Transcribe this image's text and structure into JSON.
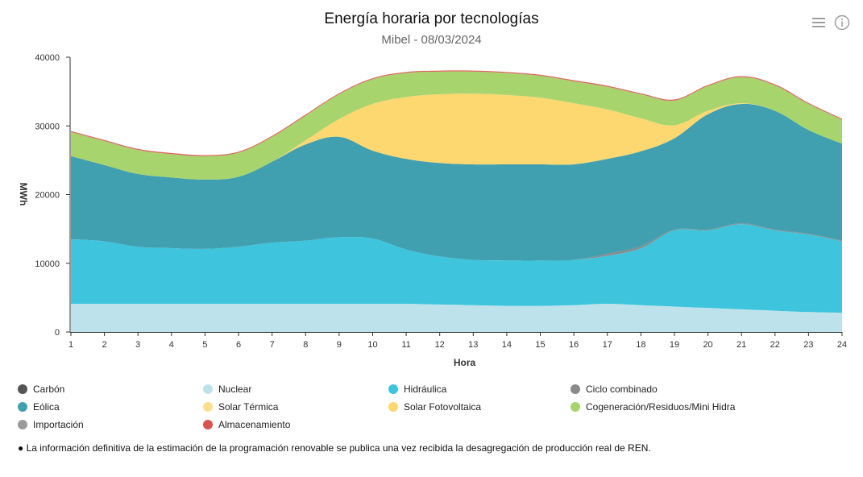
{
  "header": {
    "title": "Energía horaria por tecnologías",
    "subtitle": "Mibel - 08/03/2024"
  },
  "toolbar": {
    "menu_icon": "hamburger-menu-icon",
    "info_icon": "info-circle-icon"
  },
  "note": "● La información definitiva de la estimación de la programación renovable se publica una vez recibida la desagregación de producción real de REN.",
  "chart_data": {
    "type": "area",
    "stacked": true,
    "xlabel": "Hora",
    "ylabel": "MWh",
    "ylim": [
      0,
      40000
    ],
    "yticks": [
      0,
      10000,
      20000,
      30000,
      40000
    ],
    "y_tick_labels": [
      "0",
      "10000",
      "20000",
      "30000",
      "40000"
    ],
    "grid": false,
    "legend_position": "bottom",
    "x": [
      1,
      2,
      3,
      4,
      5,
      6,
      7,
      8,
      9,
      10,
      11,
      12,
      13,
      14,
      15,
      16,
      17,
      18,
      19,
      20,
      21,
      22,
      23,
      24
    ],
    "x_tick_labels": [
      "1",
      "2",
      "3",
      "4",
      "5",
      "6",
      "7",
      "8",
      "9",
      "10",
      "11",
      "12",
      "13",
      "14",
      "15",
      "16",
      "17",
      "18",
      "19",
      "20",
      "21",
      "22",
      "23",
      "24"
    ],
    "series": [
      {
        "name": "Carbón",
        "color": "#555555",
        "values": [
          0,
          0,
          0,
          0,
          0,
          0,
          0,
          0,
          0,
          0,
          0,
          0,
          0,
          0,
          0,
          0,
          0,
          0,
          0,
          0,
          0,
          0,
          0,
          0
        ]
      },
      {
        "name": "Nuclear",
        "color": "#bde2ec",
        "values": [
          4100,
          4100,
          4100,
          4100,
          4100,
          4100,
          4100,
          4100,
          4100,
          4100,
          4100,
          4000,
          3900,
          3800,
          3800,
          3900,
          4100,
          3900,
          3700,
          3500,
          3300,
          3100,
          2900,
          2800
        ]
      },
      {
        "name": "Hidráulica",
        "color": "#3ec4dd",
        "values": [
          9400,
          9100,
          8300,
          8100,
          8000,
          8300,
          8900,
          9200,
          9700,
          9500,
          7900,
          7000,
          6600,
          6600,
          6600,
          6600,
          7000,
          8300,
          11100,
          11300,
          12400,
          11700,
          11300,
          10400
        ]
      },
      {
        "name": "Ciclo combinado",
        "color": "#8a8a8a",
        "values": [
          0,
          0,
          0,
          0,
          0,
          0,
          0,
          0,
          0,
          0,
          0,
          0,
          0,
          0,
          0,
          0,
          300,
          300,
          100,
          100,
          100,
          100,
          100,
          100
        ]
      },
      {
        "name": "Eólica",
        "color": "#41a0b0",
        "values": [
          12100,
          11100,
          10600,
          10300,
          10100,
          10200,
          11800,
          14000,
          14600,
          12800,
          13200,
          13600,
          13900,
          14000,
          14000,
          13900,
          13800,
          13800,
          13300,
          16800,
          17400,
          17300,
          15100,
          14100
        ]
      },
      {
        "name": "Solar Térmica",
        "color": "#fddd8e",
        "values": [
          0,
          0,
          0,
          0,
          0,
          0,
          0,
          0,
          0,
          0,
          0,
          0,
          0,
          0,
          0,
          0,
          0,
          0,
          0,
          0,
          0,
          0,
          0,
          0
        ]
      },
      {
        "name": "Solar Fotovoltaica",
        "color": "#fdd770",
        "values": [
          0,
          0,
          0,
          0,
          0,
          0,
          0,
          600,
          2600,
          6800,
          9000,
          10000,
          10300,
          10100,
          9700,
          8900,
          7200,
          4800,
          1900,
          500,
          100,
          0,
          0,
          0
        ]
      },
      {
        "name": "Cogeneración/Residuos/Mini Hidra",
        "color": "#a8d46e",
        "values": [
          3500,
          3500,
          3500,
          3400,
          3400,
          3500,
          3600,
          3600,
          3600,
          3600,
          3500,
          3300,
          3200,
          3200,
          3200,
          3200,
          3300,
          3500,
          3600,
          3600,
          3800,
          3700,
          3800,
          3500
        ]
      },
      {
        "name": "Importación",
        "color": "#9a9a9a",
        "values": [
          0,
          0,
          0,
          0,
          0,
          0,
          0,
          0,
          0,
          0,
          0,
          0,
          0,
          0,
          0,
          0,
          0,
          0,
          0,
          0,
          0,
          0,
          0,
          0
        ]
      },
      {
        "name": "Almacenamiento",
        "color": "#d9534f",
        "values": [
          150,
          150,
          150,
          150,
          150,
          150,
          150,
          150,
          150,
          150,
          150,
          150,
          150,
          150,
          150,
          150,
          150,
          150,
          150,
          150,
          150,
          150,
          150,
          150
        ]
      }
    ]
  }
}
